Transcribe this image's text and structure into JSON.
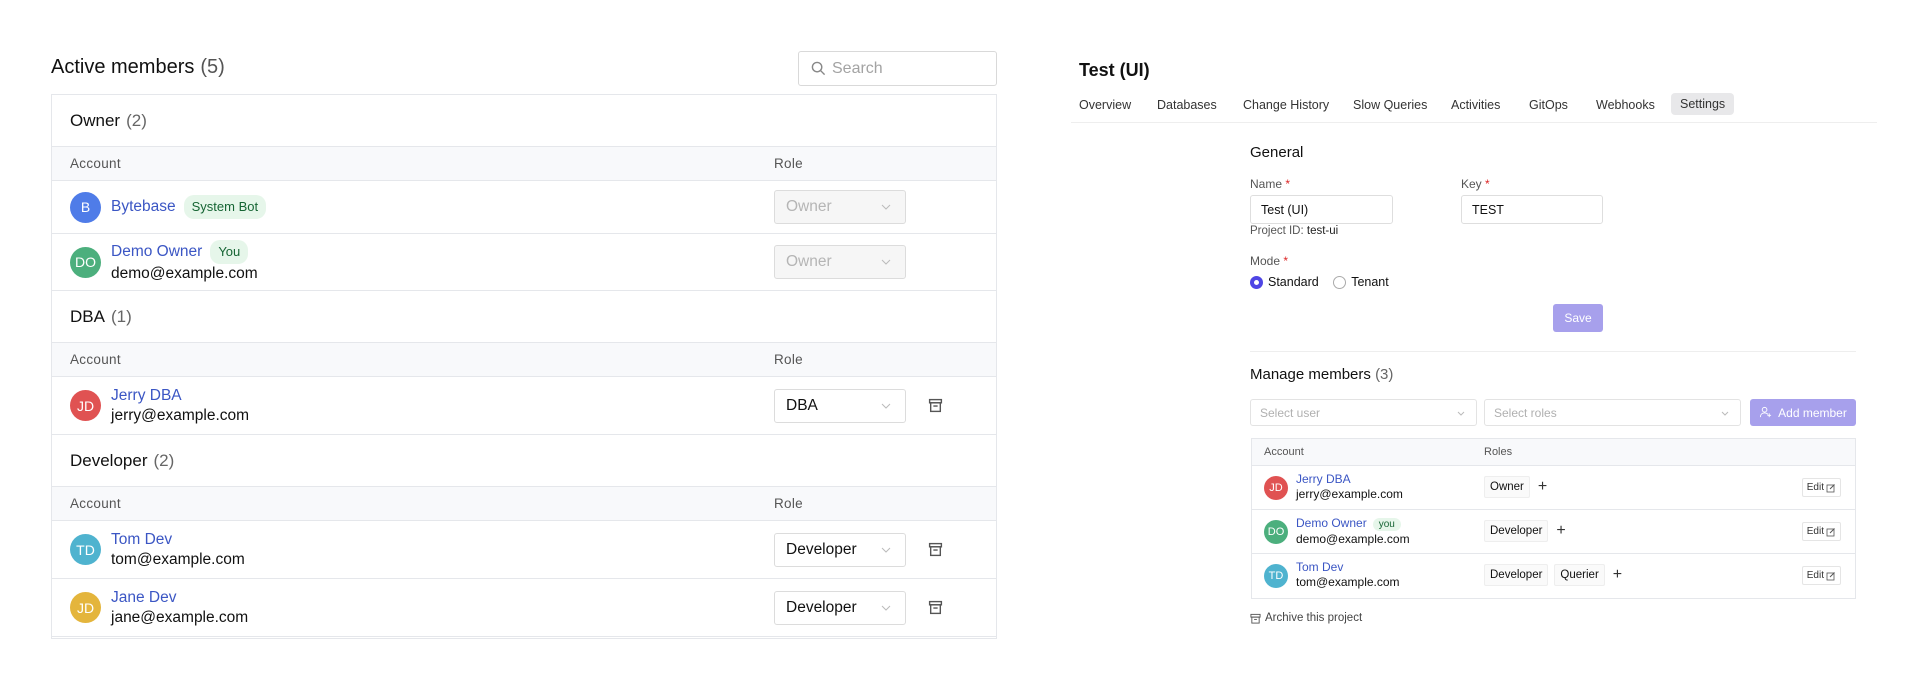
{
  "left": {
    "title": "Active members",
    "count": "(5)",
    "search_placeholder": "Search",
    "col_account": "Account",
    "col_role": "Role",
    "groups": [
      {
        "name": "Owner",
        "count": "(2)",
        "members": [
          {
            "initials": "B",
            "color": "#4f7ce8",
            "name": "Bytebase",
            "badge": "System Bot",
            "email": "",
            "role": "Owner",
            "disabled": true
          },
          {
            "initials": "DO",
            "color": "#4caf7d",
            "name": "Demo Owner",
            "badge": "You",
            "email": "demo@example.com",
            "role": "Owner",
            "disabled": true
          }
        ]
      },
      {
        "name": "DBA",
        "count": "(1)",
        "members": [
          {
            "initials": "JD",
            "color": "#e05252",
            "name": "Jerry DBA",
            "email": "jerry@example.com",
            "role": "DBA"
          }
        ]
      },
      {
        "name": "Developer",
        "count": "(2)",
        "members": [
          {
            "initials": "TD",
            "color": "#4fb3cf",
            "name": "Tom Dev",
            "email": "tom@example.com",
            "role": "Developer"
          },
          {
            "initials": "JD",
            "color": "#e4b53c",
            "name": "Jane Dev",
            "email": "jane@example.com",
            "role": "Developer"
          }
        ]
      }
    ]
  },
  "right": {
    "title": "Test (UI)",
    "tabs": [
      "Overview",
      "Databases",
      "Change History",
      "Slow Queries",
      "Activities",
      "GitOps",
      "Webhooks",
      "Settings"
    ],
    "active_tab": "Settings",
    "general": {
      "heading": "General",
      "name_label": "Name",
      "name_value": "Test (UI)",
      "key_label": "Key",
      "key_value": "TEST",
      "project_id_label": "Project ID:",
      "project_id": "test-ui",
      "mode_label": "Mode",
      "modes": [
        "Standard",
        "Tenant"
      ],
      "selected_mode": "Standard",
      "save": "Save",
      "required": "*"
    },
    "manage": {
      "heading": "Manage members",
      "count": "(3)",
      "select_user": "Select user",
      "select_roles": "Select roles",
      "add_member": "Add member",
      "col_account": "Account",
      "col_roles": "Roles",
      "edit": "Edit",
      "members": [
        {
          "initials": "JD",
          "color": "#e05252",
          "name": "Jerry DBA",
          "email": "jerry@example.com",
          "roles": [
            "Owner"
          ]
        },
        {
          "initials": "DO",
          "color": "#4caf7d",
          "name": "Demo Owner",
          "badge": "you",
          "email": "demo@example.com",
          "roles": [
            "Developer"
          ]
        },
        {
          "initials": "TD",
          "color": "#4fb3cf",
          "name": "Tom Dev",
          "email": "tom@example.com",
          "roles": [
            "Developer",
            "Querier"
          ]
        }
      ]
    },
    "archive": "Archive this project"
  },
  "colors": {
    "link": "#3b56c4",
    "accent": "#4f46e5",
    "primary_disabled": "#a7a0ec"
  }
}
